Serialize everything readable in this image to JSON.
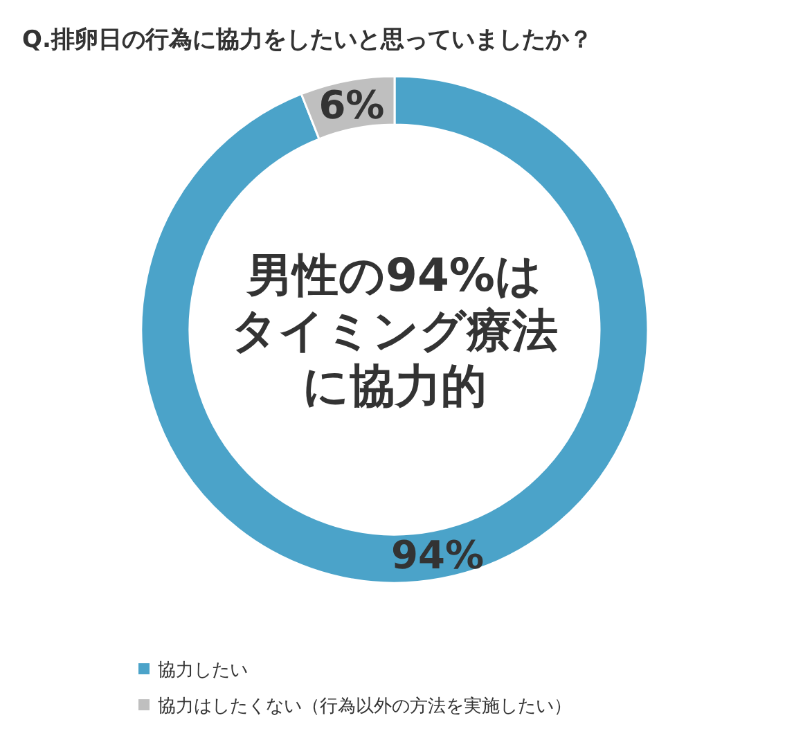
{
  "chart_data": {
    "type": "donut",
    "title": "Q.排卵日の行為に協力をしたいと思っていましたか？",
    "categories": [
      "協力したい",
      "協力はしたくない（行為以外の方法を実施したい）"
    ],
    "values": [
      94,
      6
    ],
    "colors": [
      "#4ba3c9",
      "#bfbfbf"
    ],
    "value_labels": [
      "94%",
      "6%"
    ],
    "annotations": [
      "男性の94%は",
      "タイミング療法",
      "に協力的"
    ],
    "legend": "bottom left"
  }
}
